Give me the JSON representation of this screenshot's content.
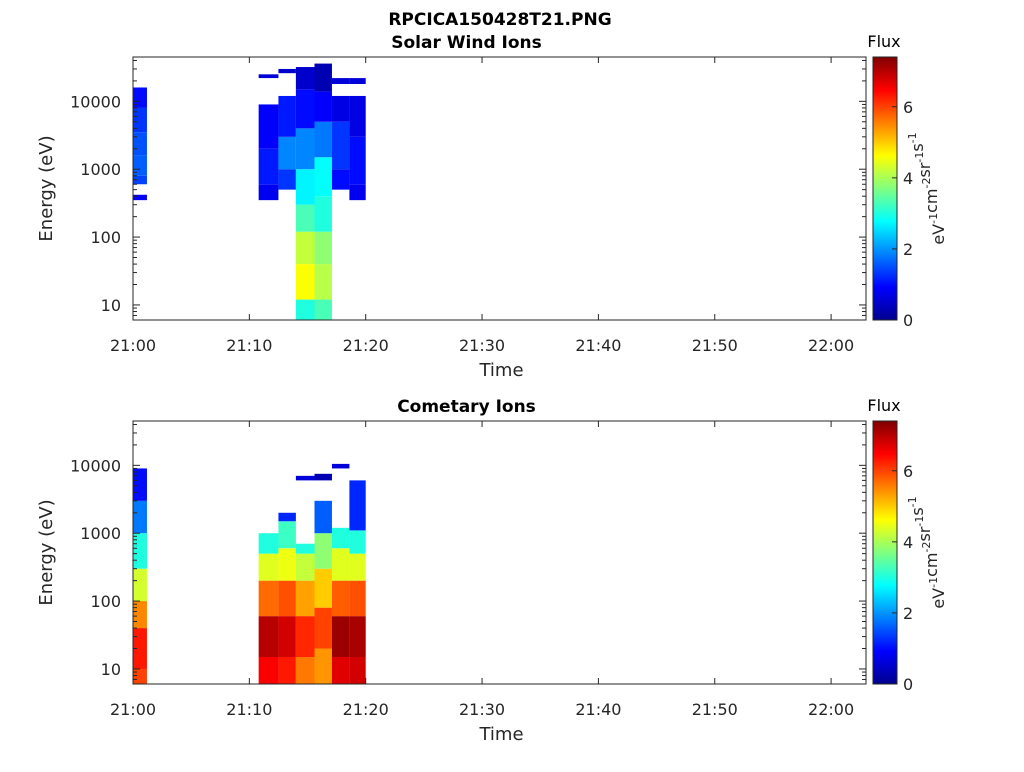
{
  "figure_title": "RPCICA150428T21.PNG",
  "colors": {
    "colormap": [
      "#00008f",
      "#0000ff",
      "#0080ff",
      "#00ffff",
      "#80ff80",
      "#ffff00",
      "#ff8000",
      "#ff0000",
      "#800000"
    ]
  },
  "chart_data": [
    {
      "type": "heatmap",
      "title": "Solar Wind Ions",
      "xlabel": "Time",
      "ylabel": "Energy (eV)",
      "xticks": [
        "21:00",
        "21:10",
        "21:20",
        "21:30",
        "21:40",
        "21:50",
        "22:00"
      ],
      "yticks": [
        "10",
        "100",
        "1000",
        "10000"
      ],
      "yscale": "log",
      "xlim_minutes_after_21_00": [
        0,
        63
      ],
      "ylim_eV": [
        6,
        45000
      ],
      "colorbar": {
        "title": "Flux",
        "label": "eV^-1 cm^-2 sr^-1 s^-1",
        "ticks": [
          "0",
          "2",
          "4",
          "6"
        ],
        "range": [
          0,
          7.4
        ]
      },
      "columns": [
        {
          "t0": 0.0,
          "t1": 1.2,
          "bins": [
            {
              "e0": 350,
              "e1": 420,
              "v": 0.9
            },
            {
              "e0": 600,
              "e1": 800,
              "v": 1.4
            },
            {
              "e0": 800,
              "e1": 1600,
              "v": 1.6
            },
            {
              "e0": 1600,
              "e1": 3500,
              "v": 1.5
            },
            {
              "e0": 3500,
              "e1": 8000,
              "v": 1.3
            },
            {
              "e0": 8000,
              "e1": 16000,
              "v": 1.0
            }
          ]
        },
        {
          "t0": 10.8,
          "t1": 12.5,
          "bins": [
            {
              "e0": 350,
              "e1": 600,
              "v": 0.8
            },
            {
              "e0": 600,
              "e1": 2000,
              "v": 1.1
            },
            {
              "e0": 2000,
              "e1": 9000,
              "v": 0.9
            },
            {
              "e0": 22000,
              "e1": 25000,
              "v": 0.6
            }
          ]
        },
        {
          "t0": 12.5,
          "t1": 14.0,
          "bins": [
            {
              "e0": 500,
              "e1": 1000,
              "v": 1.3
            },
            {
              "e0": 1000,
              "e1": 3000,
              "v": 1.9
            },
            {
              "e0": 3000,
              "e1": 12000,
              "v": 1.1
            },
            {
              "e0": 26000,
              "e1": 30000,
              "v": 0.5
            }
          ]
        },
        {
          "t0": 14.0,
          "t1": 15.6,
          "bins": [
            {
              "e0": 6,
              "e1": 12,
              "v": 3.0
            },
            {
              "e0": 12,
              "e1": 40,
              "v": 4.6
            },
            {
              "e0": 40,
              "e1": 120,
              "v": 4.2
            },
            {
              "e0": 120,
              "e1": 300,
              "v": 3.3
            },
            {
              "e0": 300,
              "e1": 1000,
              "v": 2.7
            },
            {
              "e0": 1000,
              "e1": 4000,
              "v": 1.9
            },
            {
              "e0": 4000,
              "e1": 15000,
              "v": 1.0
            },
            {
              "e0": 15000,
              "e1": 32000,
              "v": 0.5
            }
          ]
        },
        {
          "t0": 15.6,
          "t1": 17.1,
          "bins": [
            {
              "e0": 6,
              "e1": 12,
              "v": 3.3
            },
            {
              "e0": 12,
              "e1": 40,
              "v": 4.1
            },
            {
              "e0": 40,
              "e1": 120,
              "v": 3.8
            },
            {
              "e0": 120,
              "e1": 400,
              "v": 3.0
            },
            {
              "e0": 400,
              "e1": 1500,
              "v": 2.8
            },
            {
              "e0": 1500,
              "e1": 5000,
              "v": 1.8
            },
            {
              "e0": 5000,
              "e1": 14000,
              "v": 0.9
            },
            {
              "e0": 14000,
              "e1": 36000,
              "v": 0.3
            }
          ]
        },
        {
          "t0": 17.1,
          "t1": 18.6,
          "bins": [
            {
              "e0": 500,
              "e1": 1000,
              "v": 1.0
            },
            {
              "e0": 1000,
              "e1": 5000,
              "v": 1.3
            },
            {
              "e0": 5000,
              "e1": 12000,
              "v": 0.7
            },
            {
              "e0": 18000,
              "e1": 22000,
              "v": 0.6
            }
          ]
        },
        {
          "t0": 18.6,
          "t1": 20.0,
          "bins": [
            {
              "e0": 350,
              "e1": 600,
              "v": 0.8
            },
            {
              "e0": 600,
              "e1": 3000,
              "v": 1.0
            },
            {
              "e0": 3000,
              "e1": 12000,
              "v": 0.7
            },
            {
              "e0": 18000,
              "e1": 22000,
              "v": 0.6
            }
          ]
        }
      ]
    },
    {
      "type": "heatmap",
      "title": "Cometary Ions",
      "xlabel": "Time",
      "ylabel": "Energy (eV)",
      "xticks": [
        "21:00",
        "21:10",
        "21:20",
        "21:30",
        "21:40",
        "21:50",
        "22:00"
      ],
      "yticks": [
        "10",
        "100",
        "1000",
        "10000"
      ],
      "yscale": "log",
      "xlim_minutes_after_21_00": [
        0,
        63
      ],
      "ylim_eV": [
        6,
        45000
      ],
      "colorbar": {
        "title": "Flux",
        "label": "eV^-1 cm^-2 sr^-1 s^-1",
        "ticks": [
          "0",
          "2",
          "4",
          "6"
        ],
        "range": [
          0,
          7.4
        ]
      },
      "columns": [
        {
          "t0": 0.0,
          "t1": 1.2,
          "bins": [
            {
              "e0": 6,
              "e1": 10,
              "v": 6.0
            },
            {
              "e0": 10,
              "e1": 40,
              "v": 6.3
            },
            {
              "e0": 40,
              "e1": 100,
              "v": 5.5
            },
            {
              "e0": 100,
              "e1": 300,
              "v": 4.3
            },
            {
              "e0": 300,
              "e1": 1000,
              "v": 3.0
            },
            {
              "e0": 1000,
              "e1": 3000,
              "v": 1.8
            },
            {
              "e0": 3000,
              "e1": 9000,
              "v": 1.0
            }
          ]
        },
        {
          "t0": 10.8,
          "t1": 12.5,
          "bins": [
            {
              "e0": 6,
              "e1": 15,
              "v": 6.5
            },
            {
              "e0": 15,
              "e1": 60,
              "v": 7.0
            },
            {
              "e0": 60,
              "e1": 200,
              "v": 5.7
            },
            {
              "e0": 200,
              "e1": 500,
              "v": 4.4
            },
            {
              "e0": 500,
              "e1": 1000,
              "v": 3.0
            }
          ]
        },
        {
          "t0": 12.5,
          "t1": 14.0,
          "bins": [
            {
              "e0": 6,
              "e1": 15,
              "v": 6.3
            },
            {
              "e0": 15,
              "e1": 60,
              "v": 6.8
            },
            {
              "e0": 60,
              "e1": 200,
              "v": 5.9
            },
            {
              "e0": 200,
              "e1": 600,
              "v": 4.5
            },
            {
              "e0": 600,
              "e1": 1500,
              "v": 3.2
            },
            {
              "e0": 1500,
              "e1": 2000,
              "v": 1.2
            }
          ]
        },
        {
          "t0": 14.0,
          "t1": 15.6,
          "bins": [
            {
              "e0": 6,
              "e1": 15,
              "v": 5.6
            },
            {
              "e0": 15,
              "e1": 60,
              "v": 6.2
            },
            {
              "e0": 60,
              "e1": 200,
              "v": 5.3
            },
            {
              "e0": 200,
              "e1": 500,
              "v": 4.2
            },
            {
              "e0": 500,
              "e1": 700,
              "v": 3.0
            },
            {
              "e0": 6000,
              "e1": 7000,
              "v": 0.6
            }
          ]
        },
        {
          "t0": 15.6,
          "t1": 17.1,
          "bins": [
            {
              "e0": 6,
              "e1": 20,
              "v": 5.4
            },
            {
              "e0": 20,
              "e1": 80,
              "v": 6.0
            },
            {
              "e0": 80,
              "e1": 300,
              "v": 5.0
            },
            {
              "e0": 300,
              "e1": 1000,
              "v": 3.8
            },
            {
              "e0": 1000,
              "e1": 3000,
              "v": 1.6
            },
            {
              "e0": 6000,
              "e1": 7500,
              "v": 0.3
            }
          ]
        },
        {
          "t0": 17.1,
          "t1": 18.6,
          "bins": [
            {
              "e0": 6,
              "e1": 15,
              "v": 6.7
            },
            {
              "e0": 15,
              "e1": 60,
              "v": 7.2
            },
            {
              "e0": 60,
              "e1": 200,
              "v": 5.8
            },
            {
              "e0": 200,
              "e1": 600,
              "v": 4.4
            },
            {
              "e0": 600,
              "e1": 1200,
              "v": 3.0
            },
            {
              "e0": 9000,
              "e1": 10500,
              "v": 0.6
            }
          ]
        },
        {
          "t0": 18.6,
          "t1": 20.0,
          "bins": [
            {
              "e0": 6,
              "e1": 15,
              "v": 6.8
            },
            {
              "e0": 15,
              "e1": 60,
              "v": 7.1
            },
            {
              "e0": 60,
              "e1": 200,
              "v": 5.9
            },
            {
              "e0": 200,
              "e1": 500,
              "v": 4.4
            },
            {
              "e0": 500,
              "e1": 1100,
              "v": 3.0
            },
            {
              "e0": 1100,
              "e1": 6000,
              "v": 1.2
            }
          ]
        }
      ]
    }
  ]
}
